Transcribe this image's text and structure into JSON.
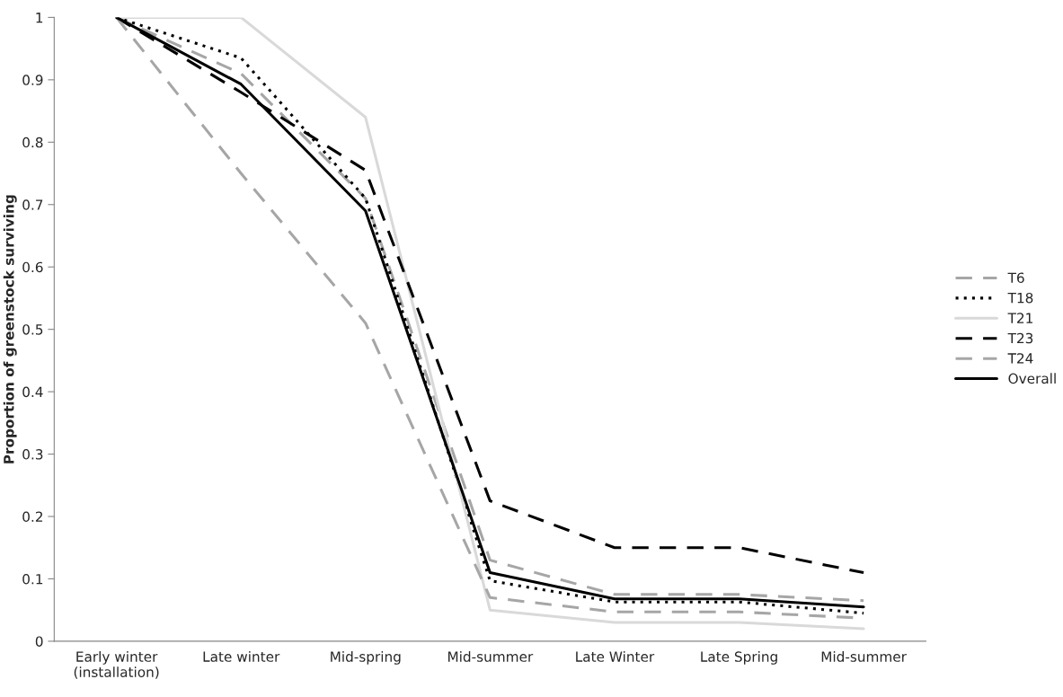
{
  "chart_data": {
    "type": "line",
    "ylabel": "Proportion of greenstock surviving",
    "categories": [
      "Early winter\n(installation)",
      "Late winter",
      "Mid-spring",
      "Mid-summer",
      "Late Winter",
      "Late Spring",
      "Mid-summer"
    ],
    "series": [
      {
        "name": "T6",
        "color": "#a6a6a6",
        "line_style": "dashed",
        "values": [
          1,
          0.91,
          0.71,
          0.13,
          0.075,
          0.075,
          0.065
        ]
      },
      {
        "name": "T18",
        "color": "#000000",
        "line_style": "dotted",
        "values": [
          1,
          0.935,
          0.71,
          0.097,
          0.063,
          0.063,
          0.045
        ]
      },
      {
        "name": "T21",
        "color": "#d9d9d9",
        "line_style": "solid",
        "values": [
          1,
          1,
          0.84,
          0.05,
          0.03,
          0.03,
          0.02
        ]
      },
      {
        "name": "T23",
        "color": "#000000",
        "line_style": "dashed",
        "values": [
          1,
          0.88,
          0.755,
          0.225,
          0.15,
          0.15,
          0.11
        ]
      },
      {
        "name": "T24",
        "color": "#a6a6a6",
        "line_style": "dashed",
        "values": [
          1,
          0.75,
          0.51,
          0.07,
          0.047,
          0.047,
          0.037
        ]
      },
      {
        "name": "Overall",
        "color": "#000000",
        "line_style": "solid",
        "values": [
          1,
          0.893,
          0.69,
          0.11,
          0.068,
          0.068,
          0.055
        ]
      }
    ],
    "ylim": [
      0,
      1
    ],
    "yticks": [
      0,
      0.1,
      0.2,
      0.3,
      0.4,
      0.5,
      0.6,
      0.7,
      0.8,
      0.9,
      1
    ],
    "grid": false,
    "legend": "right",
    "marker": "none"
  }
}
